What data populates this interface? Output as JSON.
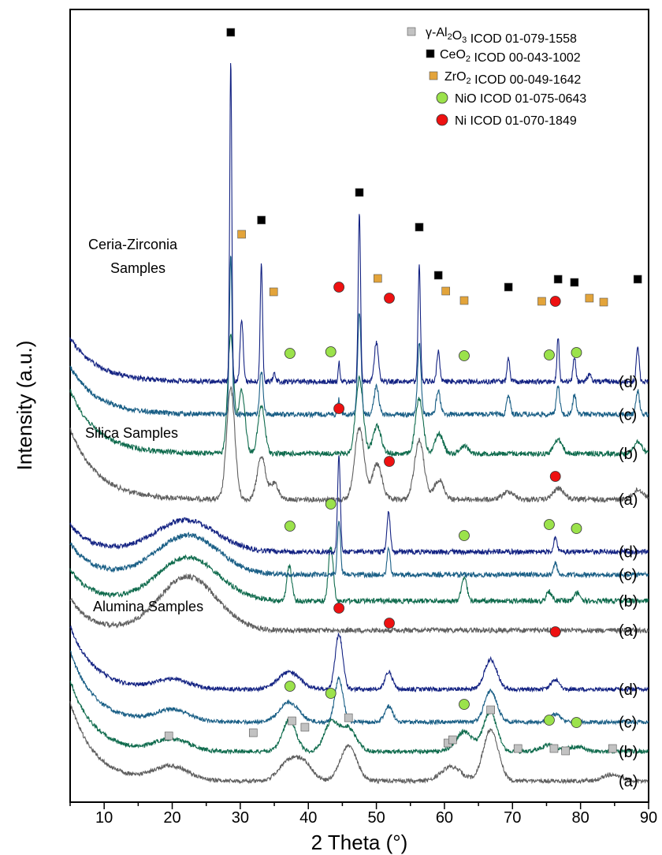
{
  "chart_data": {
    "type": "line",
    "xlabel": "2 Theta (°)",
    "ylabel": "Intensity (a.u.)",
    "xlim": [
      5,
      90
    ],
    "xticks": [
      "10",
      "20",
      "30",
      "40",
      "50",
      "60",
      "70",
      "80",
      "90"
    ],
    "grid": false,
    "legend_position": "top-right",
    "colors": {
      "a": "#5f5f5f",
      "b": "#0f6b4d",
      "c": "#1a5f86",
      "d": "#142383"
    },
    "legend": [
      {
        "id": "al2o3",
        "marker": "square",
        "color": "#c2c2c2",
        "label_parts": [
          "γ-Al",
          "2",
          "O",
          "3",
          " ICOD 01-079-1558"
        ]
      },
      {
        "id": "ceo2",
        "marker": "square",
        "color": "#000000",
        "label_parts": [
          "CeO",
          "2",
          " ICOD 00-043-1002"
        ]
      },
      {
        "id": "zro2",
        "marker": "square",
        "color": "#e3a43a",
        "label_parts": [
          "ZrO",
          "2",
          " ICOD 00-049-1642"
        ]
      },
      {
        "id": "nio",
        "marker": "circle",
        "color": "#9be24b",
        "label_parts": [
          "NiO ICOD 01-075-0643"
        ]
      },
      {
        "id": "ni",
        "marker": "circle",
        "color": "#ee1111",
        "label_parts": [
          "Ni ICOD 01-070-1849"
        ]
      }
    ],
    "groups": [
      {
        "id": "ceria-zirconia",
        "label_lines": [
          "Ceria-Zirconia",
          "Samples"
        ],
        "series": [
          {
            "name": "(a)",
            "baseline_level": 4.6
          },
          {
            "name": "(b)",
            "baseline_level": 5.3
          },
          {
            "name": "(c)",
            "baseline_level": 5.9
          },
          {
            "name": "(d)",
            "baseline_level": 6.4
          }
        ],
        "markers": [
          {
            "phase": "ceo2",
            "two_theta": [
              28.6,
              33.1,
              47.5,
              56.3,
              59.1,
              69.4,
              76.7,
              79.1,
              88.4
            ]
          },
          {
            "phase": "zro2",
            "two_theta": [
              30.2,
              34.9,
              50.2,
              60.2,
              62.9,
              74.3,
              81.3,
              83.4
            ]
          },
          {
            "phase": "ni",
            "two_theta": [
              44.5,
              51.9,
              76.3
            ]
          },
          {
            "phase": "nio",
            "two_theta": [
              37.3,
              43.3,
              62.9,
              75.4,
              79.4
            ]
          }
        ]
      },
      {
        "id": "silica",
        "label_lines": [
          "Silica Samples"
        ],
        "series": [
          {
            "name": "(a)",
            "baseline_level": 2.6
          },
          {
            "name": "(b)",
            "baseline_level": 3.05
          },
          {
            "name": "(c)",
            "baseline_level": 3.45
          },
          {
            "name": "(d)",
            "baseline_level": 3.8
          }
        ],
        "markers": [
          {
            "phase": "ni",
            "two_theta": [
              44.5,
              51.9,
              76.3
            ]
          },
          {
            "phase": "nio",
            "two_theta": [
              37.3,
              43.3,
              62.9,
              75.4,
              79.4
            ]
          }
        ]
      },
      {
        "id": "alumina",
        "label_lines": [
          "Alumina Samples"
        ],
        "series": [
          {
            "name": "(a)",
            "baseline_level": 0.3
          },
          {
            "name": "(b)",
            "baseline_level": 0.75
          },
          {
            "name": "(c)",
            "baseline_level": 1.2
          },
          {
            "name": "(d)",
            "baseline_level": 1.7
          }
        ],
        "markers": [
          {
            "phase": "ni",
            "two_theta": [
              44.5,
              51.9,
              76.3
            ]
          },
          {
            "phase": "nio",
            "two_theta": [
              37.3,
              43.3,
              62.9,
              75.4,
              79.4
            ]
          },
          {
            "phase": "al2o3",
            "two_theta": [
              19.5,
              31.9,
              37.6,
              39.5,
              45.9,
              60.5,
              61.2,
              66.8,
              70.8,
              76.1,
              77.8,
              84.7
            ]
          }
        ]
      }
    ]
  }
}
